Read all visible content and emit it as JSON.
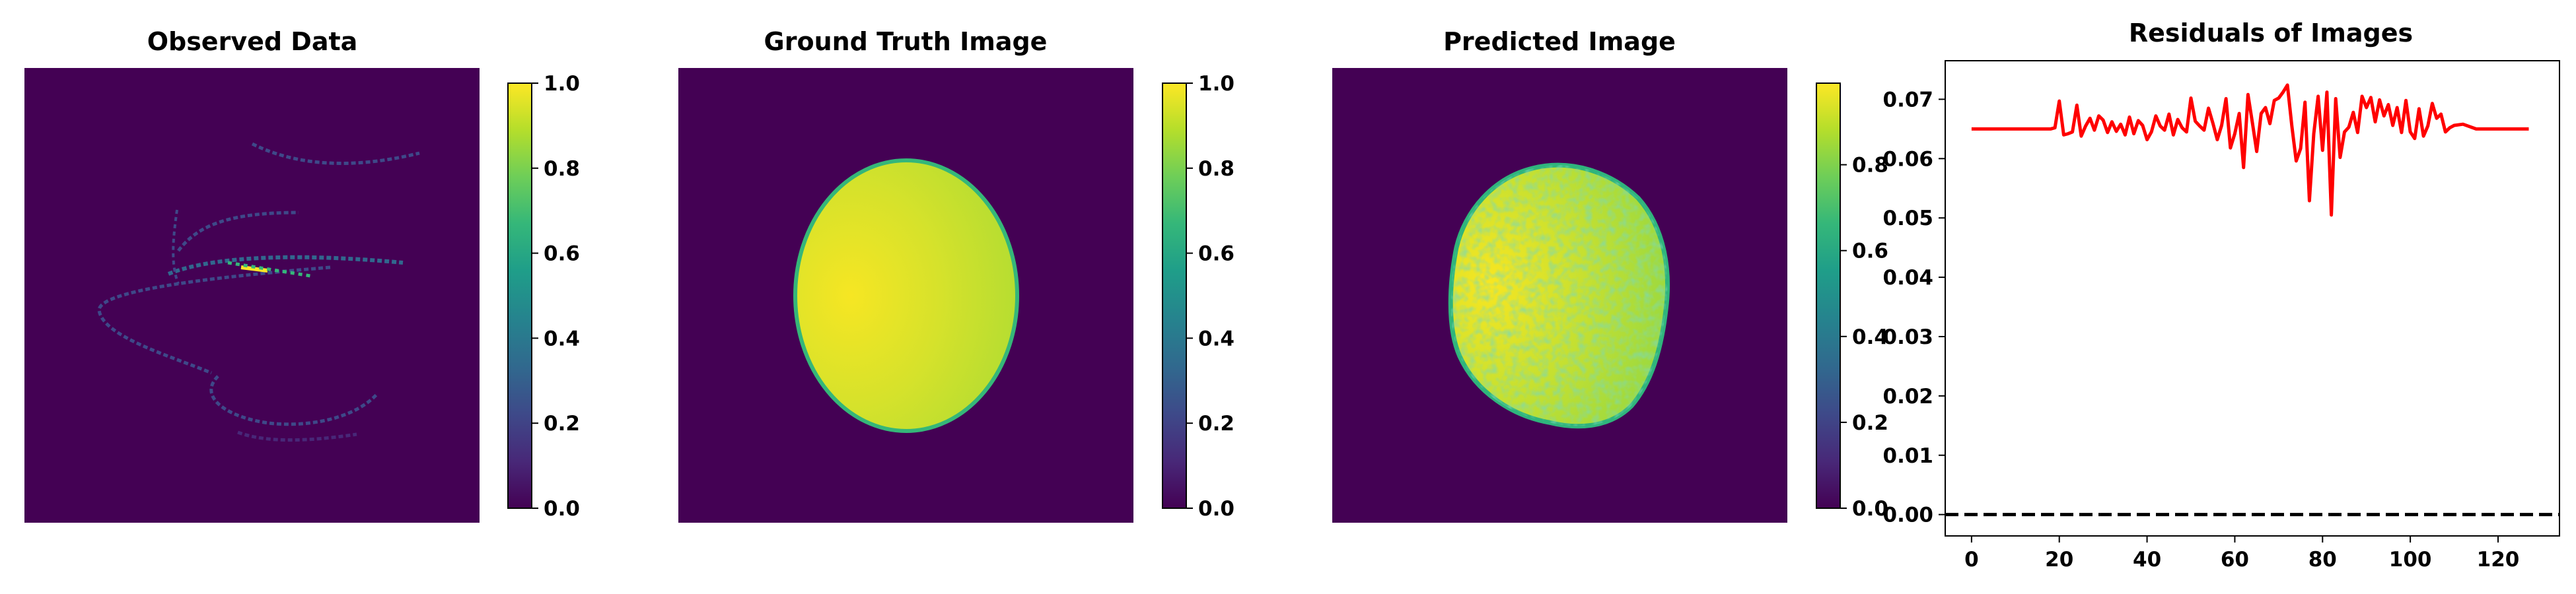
{
  "colors": {
    "background_image": "#440154",
    "residual_line": "#ff0000",
    "zero_line": "#000000",
    "viridis": [
      "#440154",
      "#482878",
      "#3e4989",
      "#31688e",
      "#26828e",
      "#1f9e89",
      "#35b779",
      "#6ece58",
      "#b5de2b",
      "#fde725"
    ]
  },
  "chart_data": [
    {
      "type": "heatmap",
      "title": "Observed Data",
      "content": "sparse curved arcs (spiral/helix sampling pattern) on a dark background, one bright streak near the center",
      "colormap": "viridis",
      "colorbar": {
        "range": [
          0.0,
          1.0
        ],
        "ticks": [
          "0.0",
          "0.2",
          "0.4",
          "0.6",
          "0.8",
          "1.0"
        ]
      }
    },
    {
      "type": "heatmap",
      "title": "Ground Truth Image",
      "content": "filled ellipse, bright yellow on the left fading to yellow-green on the right, on dark background",
      "colormap": "viridis",
      "colorbar": {
        "range": [
          0.0,
          1.0
        ],
        "ticks": [
          "0.0",
          "0.2",
          "0.4",
          "0.6",
          "0.8",
          "1.0"
        ]
      }
    },
    {
      "type": "heatmap",
      "title": "Predicted Image",
      "content": "noisy, irregular-edged ellipse reconstruction, yellow to green, on dark background",
      "colormap": "viridis",
      "colorbar": {
        "range": [
          0.0,
          0.99
        ],
        "ticks": [
          "0.0",
          "0.2",
          "0.4",
          "0.6",
          "0.8"
        ]
      }
    },
    {
      "type": "line",
      "title": "Residuals of Images",
      "xlim": [
        -6,
        134
      ],
      "ylim": [
        -0.0036,
        0.0765
      ],
      "xticks": [
        "0",
        "20",
        "40",
        "60",
        "80",
        "100",
        "120"
      ],
      "yticks": [
        "0.00",
        "0.01",
        "0.02",
        "0.03",
        "0.04",
        "0.05",
        "0.06",
        "0.07"
      ],
      "grid": false,
      "hline": {
        "y": 0,
        "style": "dashed"
      },
      "series": [
        {
          "x": [
            0,
            5,
            10,
            15,
            18,
            19,
            20,
            21,
            22,
            23,
            24,
            25,
            26,
            27,
            28,
            29,
            30,
            31,
            32,
            33,
            34,
            35,
            36,
            37,
            38,
            39,
            40,
            41,
            42,
            43,
            44,
            45,
            46,
            47,
            48,
            49,
            50,
            51,
            52,
            53,
            54,
            55,
            56,
            57,
            58,
            59,
            60,
            61,
            62,
            63,
            64,
            65,
            66,
            67,
            68,
            69,
            70,
            71,
            72,
            73,
            74,
            75,
            76,
            77,
            78,
            79,
            80,
            81,
            82,
            83,
            84,
            85,
            86,
            87,
            88,
            89,
            90,
            91,
            92,
            93,
            94,
            95,
            96,
            97,
            98,
            99,
            100,
            101,
            102,
            103,
            104,
            105,
            106,
            107,
            108,
            109,
            110,
            112,
            115,
            120,
            127
          ],
          "y": [
            0.065,
            0.065,
            0.065,
            0.065,
            0.065,
            0.0652,
            0.0697,
            0.064,
            0.0642,
            0.0645,
            0.069,
            0.0638,
            0.0655,
            0.0668,
            0.0648,
            0.0672,
            0.0665,
            0.0644,
            0.0662,
            0.0646,
            0.0658,
            0.064,
            0.067,
            0.0642,
            0.0664,
            0.0656,
            0.0632,
            0.0645,
            0.0672,
            0.0655,
            0.0648,
            0.0675,
            0.064,
            0.0666,
            0.0652,
            0.0645,
            0.0702,
            0.0663,
            0.0655,
            0.0648,
            0.0685,
            0.066,
            0.0632,
            0.0656,
            0.0701,
            0.0618,
            0.0642,
            0.0676,
            0.0585,
            0.0708,
            0.0661,
            0.0612,
            0.0676,
            0.0686,
            0.0659,
            0.0698,
            0.0702,
            0.0712,
            0.0724,
            0.0655,
            0.0596,
            0.0617,
            0.0695,
            0.0529,
            0.0642,
            0.0705,
            0.0614,
            0.0712,
            0.0505,
            0.0701,
            0.0602,
            0.0645,
            0.0653,
            0.0678,
            0.0644,
            0.0705,
            0.0686,
            0.0703,
            0.0662,
            0.0699,
            0.0672,
            0.0691,
            0.0656,
            0.0686,
            0.0644,
            0.0698,
            0.0645,
            0.0634,
            0.0684,
            0.0638,
            0.0655,
            0.0693,
            0.0668,
            0.0675,
            0.0645,
            0.0652,
            0.0656,
            0.0658,
            0.065,
            0.065,
            0.065
          ]
        }
      ]
    }
  ]
}
